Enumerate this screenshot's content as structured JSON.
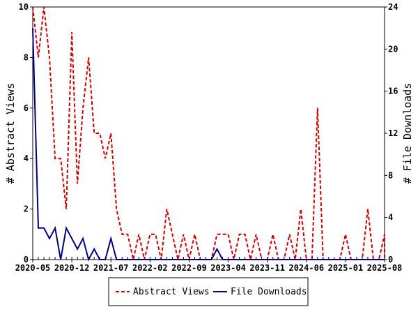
{
  "chart_data": {
    "type": "line",
    "left_axis": {
      "label": "# Abstract Views",
      "min": 0,
      "max": 10,
      "ticks": [
        "0",
        "2",
        "4",
        "6",
        "8",
        "10"
      ]
    },
    "right_axis": {
      "label": "# File Downloads",
      "min": 0,
      "max": 24,
      "ticks": [
        "0",
        "4",
        "8",
        "12",
        "16",
        "20",
        "24"
      ]
    },
    "x_start": "2020-05",
    "x_end": "2025-08",
    "x_tick_labels": [
      "2020-05",
      "2020-12",
      "2021-07",
      "2022-02",
      "2022-09",
      "2023-04",
      "2023-11",
      "2024-06",
      "2025-01",
      "2025-08"
    ],
    "series": [
      {
        "name": "Abstract Views",
        "axis": "left",
        "color": "#cc0000",
        "style": "dashed",
        "points": [
          [
            "2020-05",
            10
          ],
          [
            "2020-06",
            8
          ],
          [
            "2020-07",
            10
          ],
          [
            "2020-08",
            8
          ],
          [
            "2020-09",
            4
          ],
          [
            "2020-10",
            4
          ],
          [
            "2020-11",
            2
          ],
          [
            "2020-12",
            9
          ],
          [
            "2021-01",
            3
          ],
          [
            "2021-02",
            6
          ],
          [
            "2021-03",
            8
          ],
          [
            "2021-04",
            5
          ],
          [
            "2021-05",
            5
          ],
          [
            "2021-06",
            4
          ],
          [
            "2021-07",
            5
          ],
          [
            "2021-08",
            2
          ],
          [
            "2021-09",
            1
          ],
          [
            "2021-10",
            1
          ],
          [
            "2021-11",
            0
          ],
          [
            "2021-12",
            1
          ],
          [
            "2022-01",
            0
          ],
          [
            "2022-02",
            1
          ],
          [
            "2022-03",
            1
          ],
          [
            "2022-04",
            0
          ],
          [
            "2022-05",
            2
          ],
          [
            "2022-06",
            1
          ],
          [
            "2022-07",
            0
          ],
          [
            "2022-08",
            1
          ],
          [
            "2022-09",
            0
          ],
          [
            "2022-10",
            1
          ],
          [
            "2022-11",
            0
          ],
          [
            "2022-12",
            0
          ],
          [
            "2023-01",
            0
          ],
          [
            "2023-02",
            1
          ],
          [
            "2023-03",
            1
          ],
          [
            "2023-04",
            1
          ],
          [
            "2023-05",
            0
          ],
          [
            "2023-06",
            1
          ],
          [
            "2023-07",
            1
          ],
          [
            "2023-08",
            0
          ],
          [
            "2023-09",
            1
          ],
          [
            "2023-10",
            0
          ],
          [
            "2023-11",
            0
          ],
          [
            "2023-12",
            1
          ],
          [
            "2024-01",
            0
          ],
          [
            "2024-02",
            0
          ],
          [
            "2024-03",
            1
          ],
          [
            "2024-04",
            0
          ],
          [
            "2024-05",
            2
          ],
          [
            "2024-06",
            0
          ],
          [
            "2024-07",
            0
          ],
          [
            "2024-08",
            6
          ],
          [
            "2024-09",
            0
          ],
          [
            "2024-10",
            0
          ],
          [
            "2024-11",
            0
          ],
          [
            "2024-12",
            0
          ],
          [
            "2025-01",
            1
          ],
          [
            "2025-02",
            0
          ],
          [
            "2025-03",
            0
          ],
          [
            "2025-04",
            0
          ],
          [
            "2025-05",
            2
          ],
          [
            "2025-06",
            0
          ],
          [
            "2025-07",
            0
          ],
          [
            "2025-08",
            1
          ],
          [
            "2025-09",
            0
          ]
        ]
      },
      {
        "name": "File Downloads",
        "axis": "right",
        "color": "#000080",
        "style": "solid",
        "points": [
          [
            "2020-05",
            22
          ],
          [
            "2020-06",
            3
          ],
          [
            "2020-07",
            3
          ],
          [
            "2020-08",
            2
          ],
          [
            "2020-09",
            3
          ],
          [
            "2020-10",
            0
          ],
          [
            "2020-11",
            3
          ],
          [
            "2020-12",
            2
          ],
          [
            "2021-01",
            1
          ],
          [
            "2021-02",
            2
          ],
          [
            "2021-03",
            0
          ],
          [
            "2021-04",
            1
          ],
          [
            "2021-05",
            0
          ],
          [
            "2021-06",
            0
          ],
          [
            "2021-07",
            2
          ],
          [
            "2021-08",
            0
          ],
          [
            "2021-09",
            0
          ],
          [
            "2021-10",
            0
          ],
          [
            "2021-11",
            0
          ],
          [
            "2021-12",
            0
          ],
          [
            "2022-01",
            0
          ],
          [
            "2022-02",
            0
          ],
          [
            "2022-03",
            0
          ],
          [
            "2022-04",
            0
          ],
          [
            "2022-05",
            0
          ],
          [
            "2022-06",
            0
          ],
          [
            "2022-07",
            0
          ],
          [
            "2022-08",
            0
          ],
          [
            "2022-09",
            0
          ],
          [
            "2022-10",
            0
          ],
          [
            "2022-11",
            0
          ],
          [
            "2022-12",
            0
          ],
          [
            "2023-01",
            0
          ],
          [
            "2023-02",
            1
          ],
          [
            "2023-03",
            0
          ],
          [
            "2023-04",
            0
          ],
          [
            "2023-05",
            0
          ],
          [
            "2023-06",
            0
          ],
          [
            "2023-07",
            0
          ],
          [
            "2023-08",
            0
          ],
          [
            "2023-09",
            0
          ],
          [
            "2023-10",
            0
          ],
          [
            "2023-11",
            0
          ],
          [
            "2023-12",
            0
          ],
          [
            "2024-01",
            0
          ],
          [
            "2024-02",
            0
          ],
          [
            "2024-03",
            0
          ],
          [
            "2024-04",
            0
          ],
          [
            "2024-05",
            0
          ],
          [
            "2024-06",
            0
          ],
          [
            "2024-07",
            0
          ],
          [
            "2024-08",
            0
          ],
          [
            "2024-09",
            0
          ],
          [
            "2024-10",
            0
          ],
          [
            "2024-11",
            0
          ],
          [
            "2024-12",
            0
          ],
          [
            "2025-01",
            0
          ],
          [
            "2025-02",
            0
          ],
          [
            "2025-03",
            0
          ],
          [
            "2025-04",
            0
          ],
          [
            "2025-05",
            0
          ],
          [
            "2025-06",
            0
          ],
          [
            "2025-07",
            0
          ],
          [
            "2025-08",
            0
          ],
          [
            "2025-09",
            0
          ]
        ]
      }
    ],
    "grid": false,
    "legend_position": "bottom"
  },
  "legend": {
    "items": [
      {
        "label": "Abstract Views",
        "color": "#cc0000",
        "style": "dashed"
      },
      {
        "label": "File Downloads",
        "color": "#000080",
        "style": "solid"
      }
    ]
  }
}
